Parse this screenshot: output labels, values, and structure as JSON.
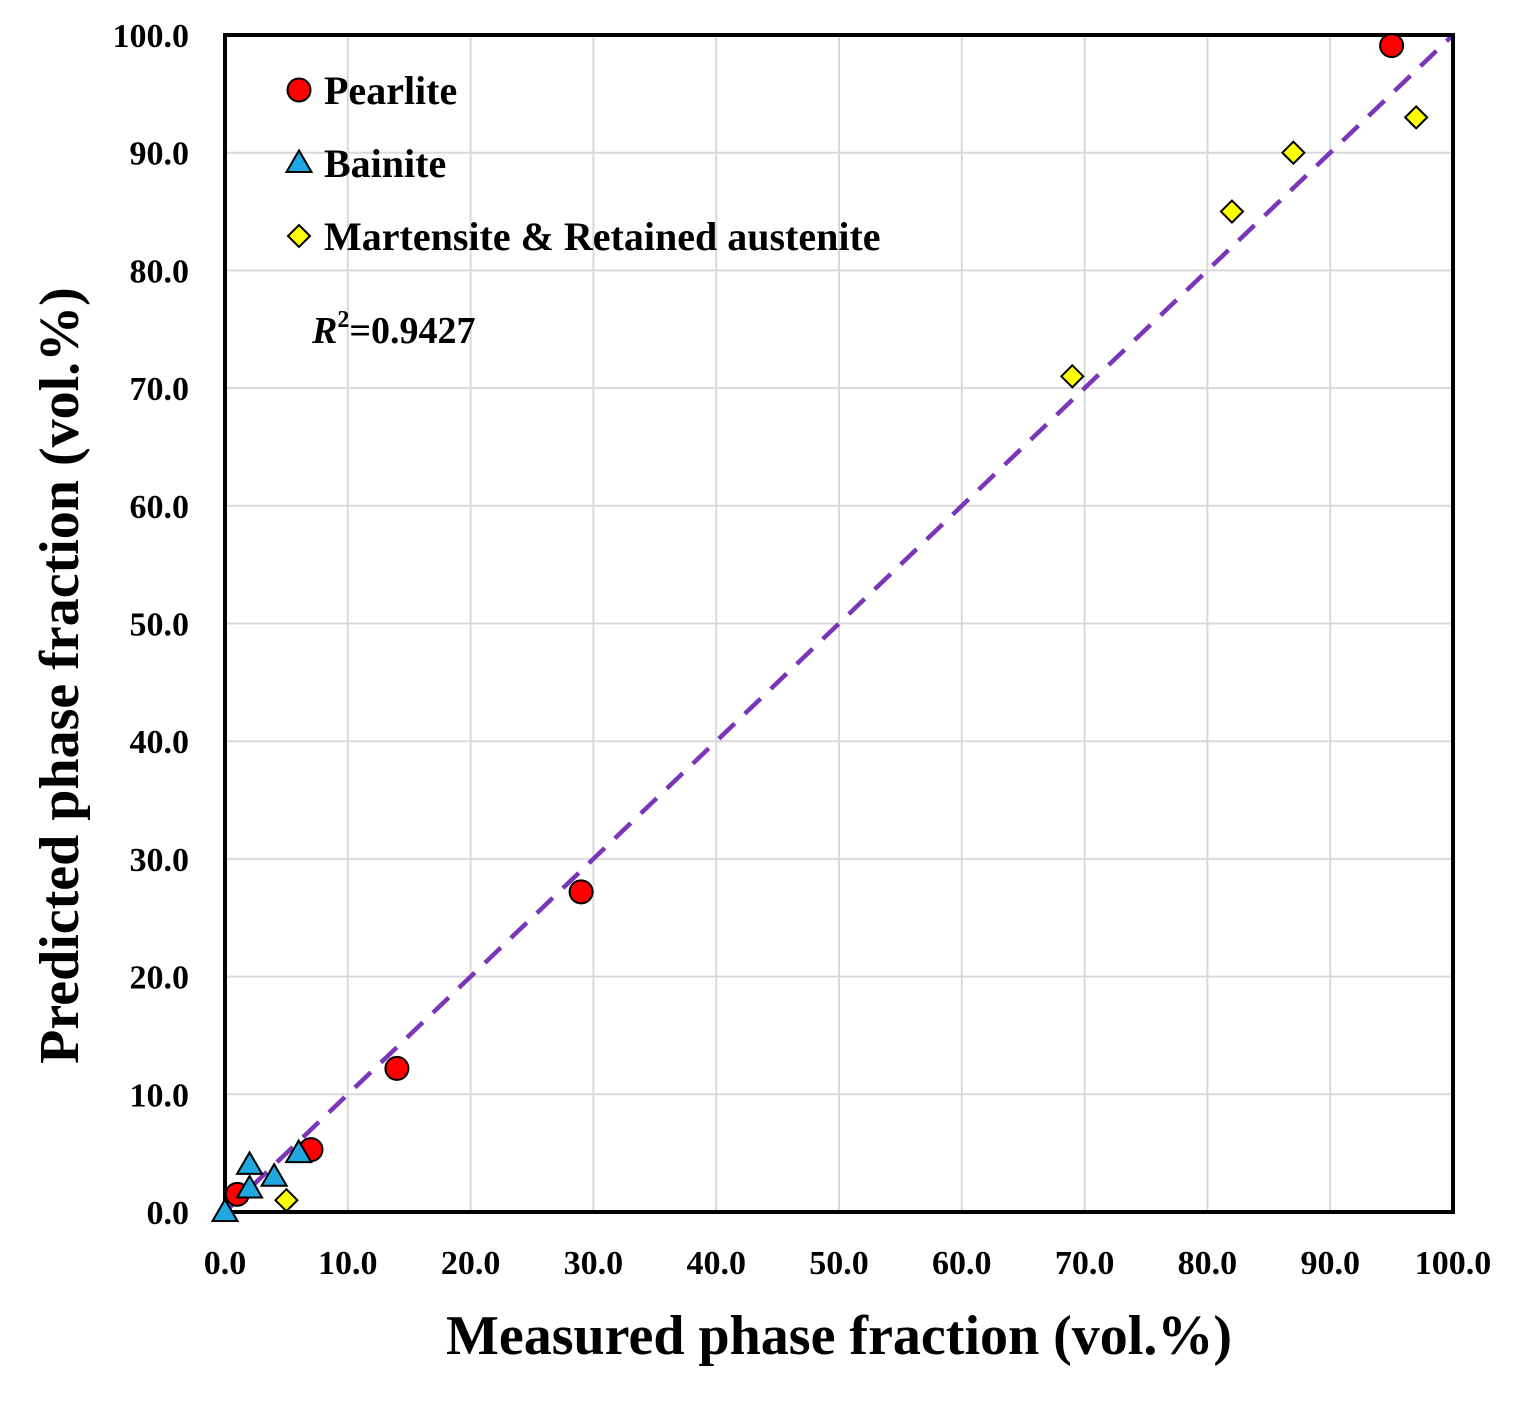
{
  "chart_data": {
    "type": "scatter",
    "xlabel": "Measured phase fraction (vol.%)",
    "ylabel": "Predicted phase fraction (vol.%)",
    "xlim": [
      0,
      100
    ],
    "ylim": [
      0,
      100
    ],
    "ticks": [
      "0.0",
      "10.0",
      "20.0",
      "30.0",
      "40.0",
      "50.0",
      "60.0",
      "70.0",
      "80.0",
      "90.0",
      "100.0"
    ],
    "tick_values": [
      0,
      10,
      20,
      30,
      40,
      50,
      60,
      70,
      80,
      90,
      100
    ],
    "grid": true,
    "legend_position": "top-left",
    "series": [
      {
        "name": "Pearlite",
        "marker": "circle",
        "color": "#ff0000",
        "points": [
          [
            1,
            1.5
          ],
          [
            7,
            5.3
          ],
          [
            14,
            12.2
          ],
          [
            29,
            27.2
          ],
          [
            95,
            99.1
          ]
        ]
      },
      {
        "name": "Bainite",
        "marker": "triangle",
        "color": "#1fa8e0",
        "points": [
          [
            0,
            0
          ],
          [
            2,
            2
          ],
          [
            2,
            4
          ],
          [
            4,
            3
          ],
          [
            6,
            5
          ]
        ]
      },
      {
        "name": "Martensite & Retained austenite",
        "marker": "diamond",
        "color": "#ffff00",
        "points": [
          [
            5,
            1
          ],
          [
            69,
            71
          ],
          [
            82,
            85
          ],
          [
            87,
            90
          ],
          [
            97,
            93
          ]
        ]
      }
    ],
    "reference_line": {
      "type": "y=x",
      "style": "dashed",
      "color": "#7a35b8"
    },
    "annotation": {
      "r_label": "R",
      "superscript": "2",
      "value_text": "=0.9427"
    }
  }
}
